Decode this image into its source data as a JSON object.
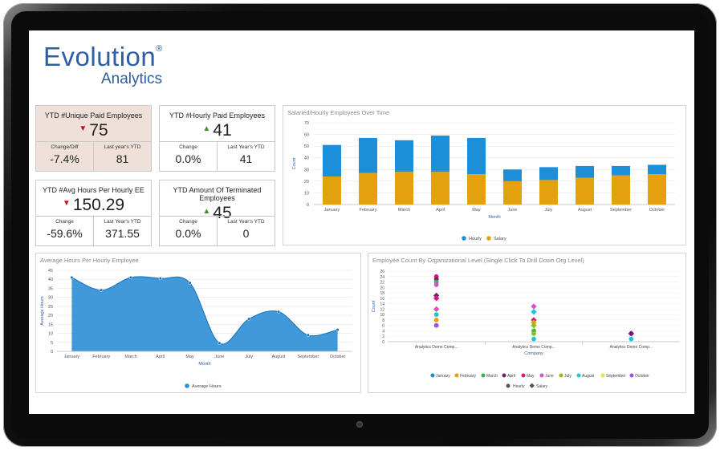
{
  "logo": {
    "line1": "Evolution",
    "trademark": "®",
    "line2": "Analytics"
  },
  "kpis": {
    "unique_paid": {
      "title": "YTD #Unique Paid Employees",
      "value": "75",
      "direction": "down",
      "sub1_label": "Change/Diff",
      "sub1_value": "-7.4%",
      "sub2_label": "Last year's YTD",
      "sub2_value": "81"
    },
    "hourly_paid": {
      "title": "YTD #Hourly Paid Employees",
      "value": "41",
      "direction": "up",
      "sub1_label": "Change",
      "sub1_value": "0.0%",
      "sub2_label": "Last Year's YTD",
      "sub2_value": "41"
    },
    "avg_hours": {
      "title": "YTD #Avg Hours Per Hourly EE",
      "value": "150.29",
      "direction": "down",
      "sub1_label": "Change",
      "sub1_value": "-59.6%",
      "sub2_label": "Last Year's YTD",
      "sub2_value": "371.55"
    },
    "terminated": {
      "title": "YTD Amount Of Terminated Employees",
      "value": "45",
      "direction": "up",
      "sub1_label": "Change",
      "sub1_value": "0.0%",
      "sub2_label": "Last Year's YTD",
      "sub2_value": "0"
    }
  },
  "arrows": {
    "up": "▲",
    "down": "▼"
  },
  "colors": {
    "hourly": "#1c8fd8",
    "salary": "#e3a20b",
    "area": "#2b8fd6",
    "brand": "#2d5ea4"
  },
  "chart_data": [
    {
      "type": "bar",
      "title": "Salaried/Hourly Employees Over Time",
      "stacked": true,
      "categories": [
        "January",
        "February",
        "March",
        "April",
        "May",
        "June",
        "July",
        "August",
        "September",
        "October"
      ],
      "series": [
        {
          "name": "Salary",
          "values": [
            24,
            27,
            28,
            28,
            26,
            20,
            21,
            23,
            25,
            26
          ]
        },
        {
          "name": "Hourly",
          "values": [
            27,
            30,
            27,
            31,
            31,
            10,
            11,
            10,
            8,
            8
          ]
        }
      ],
      "xlabel": "Month",
      "ylabel": "Count",
      "ylim": [
        0,
        70
      ],
      "yticks": [
        0,
        10,
        20,
        30,
        40,
        50,
        60,
        70
      ],
      "legend": "bottom-center",
      "grid": true
    },
    {
      "type": "area",
      "title": "Average Hours Per Hourly Employee",
      "categories": [
        "January",
        "February",
        "March",
        "April",
        "May",
        "June",
        "July",
        "August",
        "September",
        "October"
      ],
      "series": [
        {
          "name": "Average Hours",
          "values": [
            41,
            34,
            41,
            40.5,
            38,
            4.5,
            18,
            22,
            9,
            12
          ]
        }
      ],
      "xlabel": "Month",
      "ylabel": "Average Hours",
      "ylim": [
        0,
        45
      ],
      "yticks": [
        0,
        5,
        10,
        15,
        20,
        25,
        30,
        35,
        40,
        45
      ],
      "legend": "bottom-center",
      "grid": true
    },
    {
      "type": "scatter",
      "title": "Employee Count By Organizational Level (Single Click To Drill Down Org Level)",
      "categories": [
        "Analytics Demo Comp...",
        "Analytics Demo Comp...",
        "Analytics Demo Comp..."
      ],
      "xlabel": "Company",
      "ylabel": "Count",
      "ylim": [
        0,
        26
      ],
      "yticks": [
        0,
        2,
        4,
        6,
        8,
        10,
        12,
        14,
        16,
        18,
        20,
        22,
        24,
        26
      ],
      "months": [
        "January",
        "February",
        "March",
        "April",
        "May",
        "June",
        "July",
        "August",
        "September",
        "October"
      ],
      "month_colors": [
        "#1c8fd8",
        "#e3a20b",
        "#3bb54a",
        "#7a1c7e",
        "#d61c7a",
        "#cf55c8",
        "#8fbd1b",
        "#1cc7d6",
        "#e7e14a",
        "#9b52e0"
      ],
      "series": [
        {
          "name": "Hourly",
          "points": [
            {
              "x": 0,
              "y": 24,
              "month": "May"
            },
            {
              "x": 0,
              "y": 23,
              "month": "April"
            },
            {
              "x": 0,
              "y": 22,
              "month": "March"
            },
            {
              "x": 0,
              "y": 21,
              "month": "June"
            },
            {
              "x": 0,
              "y": 10,
              "month": "August"
            },
            {
              "x": 0,
              "y": 8,
              "month": "February"
            },
            {
              "x": 0,
              "y": 6,
              "month": "October"
            },
            {
              "x": 1,
              "y": 4,
              "month": "March"
            },
            {
              "x": 1,
              "y": 3,
              "month": "July"
            },
            {
              "x": 1,
              "y": 1,
              "month": "August"
            },
            {
              "x": 2,
              "y": 3,
              "month": "April"
            },
            {
              "x": 2,
              "y": 1,
              "month": "August"
            }
          ]
        },
        {
          "name": "Salary",
          "points": [
            {
              "x": 0,
              "y": 17,
              "month": "April"
            },
            {
              "x": 0,
              "y": 16,
              "month": "May"
            },
            {
              "x": 0,
              "y": 12,
              "month": "September"
            },
            {
              "x": 0,
              "y": 12,
              "month": "June"
            },
            {
              "x": 1,
              "y": 13,
              "month": "June"
            },
            {
              "x": 1,
              "y": 11,
              "month": "August"
            },
            {
              "x": 1,
              "y": 8,
              "month": "May"
            },
            {
              "x": 1,
              "y": 7,
              "month": "February"
            },
            {
              "x": 1,
              "y": 6,
              "month": "July"
            },
            {
              "x": 2,
              "y": 3,
              "month": "April"
            }
          ]
        }
      ],
      "legend": "bottom-center",
      "grid": true
    }
  ]
}
